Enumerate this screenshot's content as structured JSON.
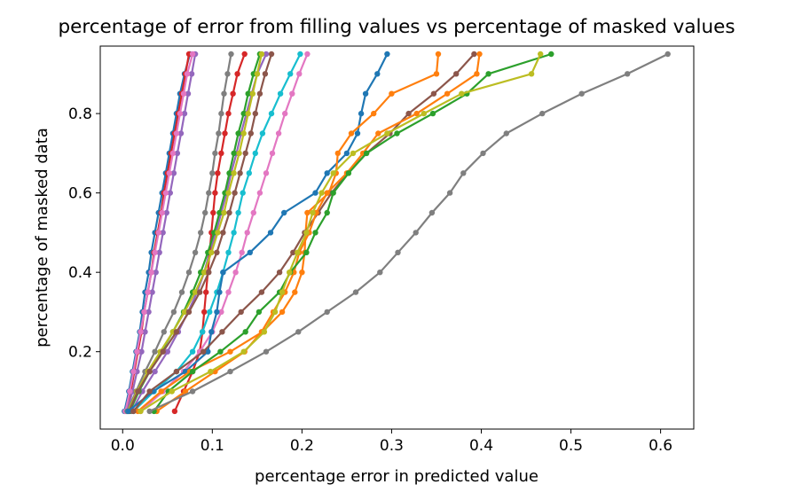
{
  "chart_data": {
    "type": "line",
    "title": "percentage of error from filling values vs percentage of masked values",
    "xlabel": "percentage error in predicted value",
    "ylabel": "percentage of masked data",
    "xlim": [
      -0.025,
      0.637
    ],
    "ylim": [
      0.005,
      0.97
    ],
    "xticks": [
      0.0,
      0.1,
      0.2,
      0.3,
      0.4,
      0.5,
      0.6
    ],
    "xtick_labels": [
      "0.0",
      "0.1",
      "0.2",
      "0.3",
      "0.4",
      "0.5",
      "0.6"
    ],
    "yticks": [
      0.2,
      0.4,
      0.6,
      0.8
    ],
    "ytick_labels": [
      "0.2",
      "0.4",
      "0.6",
      "0.8"
    ],
    "grid": false,
    "legend": "none",
    "y": [
      0.05,
      0.1,
      0.15,
      0.2,
      0.25,
      0.3,
      0.35,
      0.4,
      0.45,
      0.5,
      0.55,
      0.6,
      0.65,
      0.7,
      0.75,
      0.8,
      0.85,
      0.9,
      0.95
    ],
    "series": [
      {
        "color": "#1f77b4",
        "x": [
          0.002,
          0.007,
          0.011,
          0.015,
          0.019,
          0.022,
          0.025,
          0.029,
          0.032,
          0.036,
          0.04,
          0.044,
          0.048,
          0.052,
          0.056,
          0.06,
          0.064,
          0.069,
          0.075
        ]
      },
      {
        "color": "#d62728",
        "x": [
          0.004,
          0.009,
          0.013,
          0.017,
          0.021,
          0.024,
          0.028,
          0.032,
          0.035,
          0.039,
          0.043,
          0.046,
          0.05,
          0.054,
          0.058,
          0.062,
          0.066,
          0.07,
          0.074
        ]
      },
      {
        "color": "#9467bd",
        "x": [
          0.005,
          0.011,
          0.016,
          0.021,
          0.025,
          0.029,
          0.033,
          0.037,
          0.041,
          0.045,
          0.049,
          0.053,
          0.057,
          0.061,
          0.065,
          0.069,
          0.073,
          0.077,
          0.081
        ]
      },
      {
        "color": "#e377c2",
        "x": [
          0.003,
          0.008,
          0.012,
          0.016,
          0.02,
          0.024,
          0.028,
          0.032,
          0.036,
          0.04,
          0.044,
          0.048,
          0.052,
          0.056,
          0.06,
          0.064,
          0.068,
          0.072,
          0.078
        ]
      },
      {
        "color": "#7f7f7f",
        "x": [
          0.005,
          0.015,
          0.025,
          0.036,
          0.046,
          0.057,
          0.066,
          0.074,
          0.081,
          0.087,
          0.092,
          0.096,
          0.1,
          0.103,
          0.107,
          0.11,
          0.113,
          0.117,
          0.121
        ]
      },
      {
        "color": "#9467bd",
        "x": [
          0.01,
          0.022,
          0.036,
          0.05,
          0.062,
          0.073,
          0.083,
          0.091,
          0.097,
          0.104,
          0.11,
          0.116,
          0.121,
          0.127,
          0.132,
          0.138,
          0.144,
          0.15,
          0.16
        ]
      },
      {
        "color": "#d62728",
        "x": [
          0.058,
          0.068,
          0.078,
          0.086,
          0.089,
          0.091,
          0.093,
          0.095,
          0.097,
          0.099,
          0.101,
          0.103,
          0.106,
          0.11,
          0.114,
          0.118,
          0.123,
          0.128,
          0.136
        ]
      },
      {
        "color": "#2ca02c",
        "x": [
          0.008,
          0.018,
          0.03,
          0.043,
          0.056,
          0.068,
          0.078,
          0.087,
          0.095,
          0.102,
          0.108,
          0.114,
          0.119,
          0.124,
          0.129,
          0.135,
          0.14,
          0.146,
          0.153
        ]
      },
      {
        "color": "#bcbd22",
        "x": [
          0.006,
          0.016,
          0.028,
          0.042,
          0.056,
          0.069,
          0.081,
          0.091,
          0.099,
          0.106,
          0.113,
          0.118,
          0.124,
          0.13,
          0.135,
          0.14,
          0.145,
          0.15,
          0.155
        ]
      },
      {
        "color": "#8c564b",
        "x": [
          0.007,
          0.017,
          0.03,
          0.045,
          0.06,
          0.074,
          0.086,
          0.096,
          0.105,
          0.112,
          0.119,
          0.125,
          0.131,
          0.137,
          0.143,
          0.148,
          0.153,
          0.159,
          0.166
        ]
      },
      {
        "color": "#17becf",
        "x": [
          0.012,
          0.035,
          0.06,
          0.078,
          0.089,
          0.097,
          0.105,
          0.112,
          0.118,
          0.124,
          0.129,
          0.134,
          0.141,
          0.148,
          0.156,
          0.166,
          0.176,
          0.187,
          0.198
        ]
      },
      {
        "color": "#e377c2",
        "x": [
          0.02,
          0.045,
          0.068,
          0.086,
          0.1,
          0.11,
          0.118,
          0.126,
          0.133,
          0.139,
          0.146,
          0.153,
          0.16,
          0.167,
          0.174,
          0.181,
          0.189,
          0.197,
          0.206
        ]
      },
      {
        "color": "#1f77b4",
        "x": [
          0.006,
          0.034,
          0.07,
          0.095,
          0.099,
          0.105,
          0.108,
          0.112,
          0.142,
          0.165,
          0.18,
          0.215,
          0.228,
          0.25,
          0.262,
          0.266,
          0.271,
          0.284,
          0.295
        ]
      },
      {
        "color": "#ff7f0e",
        "x": [
          0.017,
          0.043,
          0.075,
          0.12,
          0.156,
          0.178,
          0.192,
          0.2,
          0.203,
          0.204,
          0.206,
          0.23,
          0.238,
          0.24,
          0.255,
          0.28,
          0.3,
          0.35,
          0.352
        ]
      },
      {
        "color": "#8c564b",
        "x": [
          0.012,
          0.03,
          0.06,
          0.09,
          0.111,
          0.132,
          0.155,
          0.175,
          0.19,
          0.203,
          0.218,
          0.233,
          0.251,
          0.272,
          0.298,
          0.319,
          0.347,
          0.372,
          0.392
        ]
      },
      {
        "color": "#ff7f0e",
        "x": [
          0.038,
          0.07,
          0.103,
          0.136,
          0.155,
          0.168,
          0.181,
          0.191,
          0.197,
          0.208,
          0.216,
          0.228,
          0.25,
          0.268,
          0.285,
          0.328,
          0.362,
          0.395,
          0.398
        ]
      },
      {
        "color": "#2ca02c",
        "x": [
          0.035,
          0.051,
          0.078,
          0.109,
          0.137,
          0.152,
          0.175,
          0.187,
          0.205,
          0.215,
          0.228,
          0.235,
          0.252,
          0.272,
          0.306,
          0.346,
          0.384,
          0.408,
          0.478
        ]
      },
      {
        "color": "#bcbd22",
        "x": [
          0.02,
          0.055,
          0.098,
          0.135,
          0.158,
          0.17,
          0.178,
          0.186,
          0.195,
          0.205,
          0.212,
          0.222,
          0.235,
          0.257,
          0.295,
          0.336,
          0.378,
          0.456,
          0.466
        ]
      },
      {
        "color": "#7f7f7f",
        "x": [
          0.03,
          0.078,
          0.12,
          0.16,
          0.196,
          0.228,
          0.26,
          0.287,
          0.307,
          0.327,
          0.345,
          0.365,
          0.38,
          0.402,
          0.428,
          0.468,
          0.512,
          0.563,
          0.608
        ]
      }
    ]
  }
}
